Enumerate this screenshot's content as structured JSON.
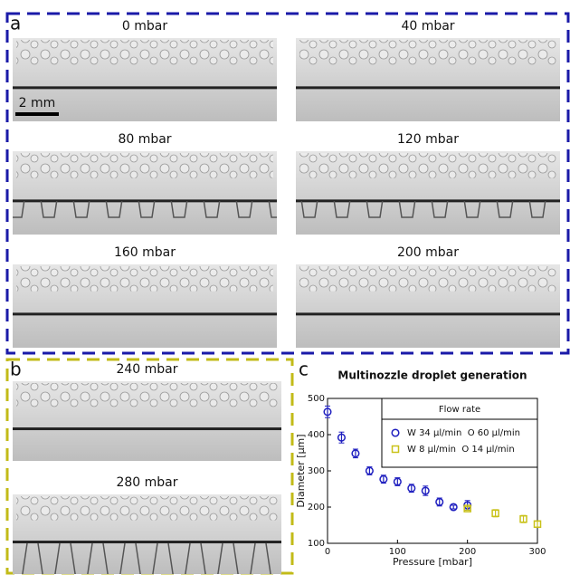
{
  "panels": {
    "a": {
      "label": "a",
      "scale_bar": "2 mm",
      "images": [
        {
          "label": "0 mbar"
        },
        {
          "label": "40 mbar"
        },
        {
          "label": "80 mbar"
        },
        {
          "label": "120 mbar"
        },
        {
          "label": "160 mbar"
        },
        {
          "label": "200 mbar"
        }
      ]
    },
    "b": {
      "label": "b",
      "images": [
        {
          "label": "240 mbar"
        },
        {
          "label": "280 mbar"
        }
      ]
    },
    "c": {
      "label": "c"
    }
  },
  "chart_data": {
    "type": "scatter",
    "title": "Multinozzle droplet generation",
    "x_label": "Pressure [mbar]",
    "y_label": "Diameter [µm]",
    "xlim": [
      0,
      300
    ],
    "xticks": [
      0,
      100,
      200,
      300
    ],
    "ylim": [
      100,
      500
    ],
    "yticks": [
      100,
      200,
      300,
      400,
      500
    ],
    "legend_title": "Flow rate",
    "legend": "upper right",
    "series": [
      {
        "name": "W 34 µl/min  O 60 µl/min",
        "color": "#1f1fbf",
        "marker": "circle",
        "x": [
          0,
          20,
          40,
          60,
          80,
          100,
          120,
          140,
          160,
          180,
          200
        ],
        "values": [
          463,
          392,
          348,
          300,
          277,
          270,
          252,
          245,
          214,
          200,
          205
        ],
        "errors": [
          16,
          15,
          12,
          11,
          11,
          11,
          11,
          13,
          11,
          5,
          13
        ]
      },
      {
        "name": "W 8 µl/min  O 14 µl/min",
        "color": "#c9c21a",
        "marker": "square",
        "x": [
          200,
          240,
          280,
          300
        ],
        "values": [
          196,
          183,
          167,
          153
        ],
        "errors": [
          5,
          10,
          10,
          8
        ]
      }
    ]
  }
}
